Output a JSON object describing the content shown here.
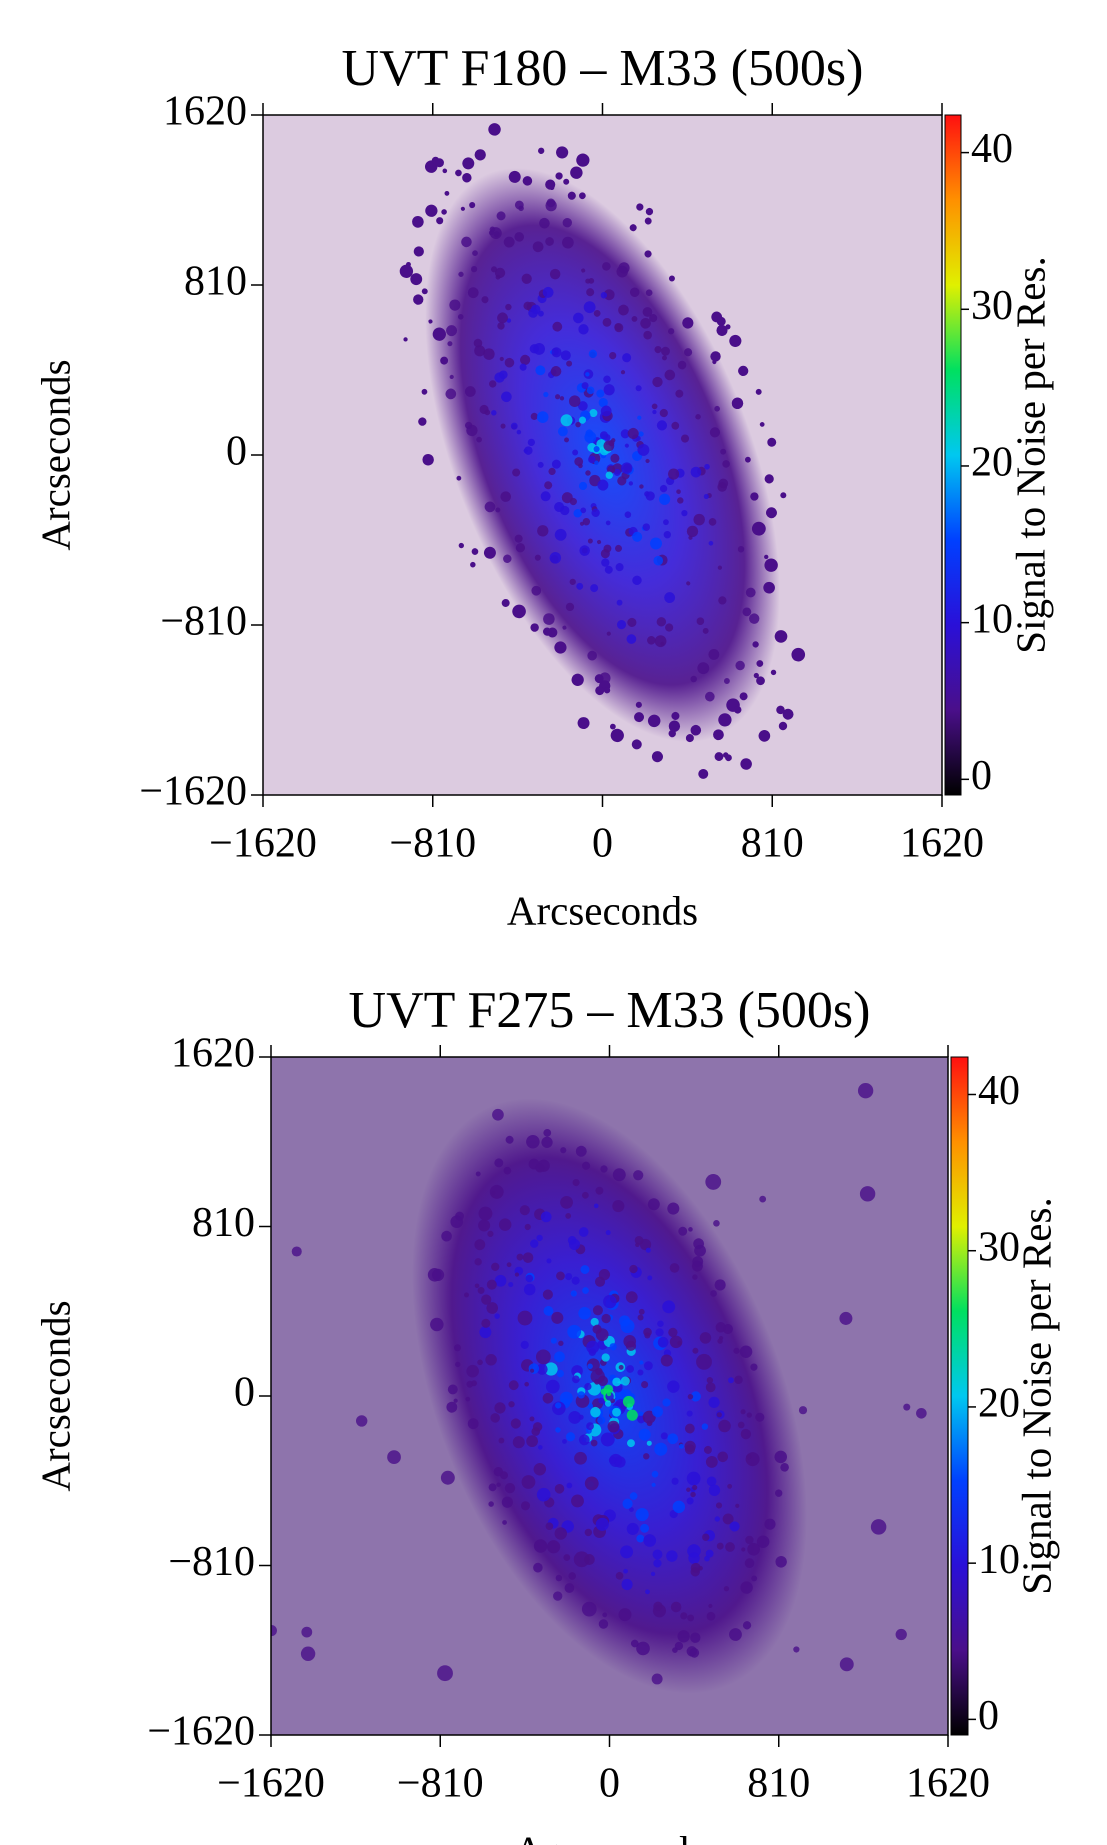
{
  "chart_data": [
    {
      "type": "image",
      "title": "UVT F180 – M33 (500s)",
      "xlabel": "Arcseconds",
      "ylabel": "Arcseconds",
      "xlim": [
        -1620,
        1620
      ],
      "ylim": [
        -1620,
        1620
      ],
      "xticks": [
        {
          "value": -1620,
          "label": "−1620"
        },
        {
          "value": -810,
          "label": "−810"
        },
        0,
        810,
        1620
      ],
      "yticks": [
        {
          "value": -1620,
          "label": "−1620"
        },
        {
          "value": -810,
          "label": "−810"
        },
        0,
        810,
        1620
      ],
      "background": "#dccbe0",
      "colorbar": {
        "label": "Signal to Noise per Res.",
        "lim": [
          -1,
          42.4
        ],
        "ticks": [
          0,
          10,
          20,
          30,
          40
        ],
        "colormap": [
          "#000000",
          "#4a0f8a",
          "#2a10d8",
          "#0040ff",
          "#00c8f0",
          "#00e060",
          "#e0f000",
          "#ff9000",
          "#ff1010"
        ]
      }
    },
    {
      "type": "image",
      "title": "UVT F275 – M33 (500s)",
      "xlabel": "Arcseconds",
      "ylabel": "Arcseconds",
      "xlim": [
        -1620,
        1620
      ],
      "ylim": [
        -1620,
        1620
      ],
      "xticks": [
        {
          "value": -1620,
          "label": "−1620"
        },
        {
          "value": -810,
          "label": "−810"
        },
        0,
        810,
        1620
      ],
      "yticks": [
        {
          "value": -1620,
          "label": "−1620"
        },
        {
          "value": -810,
          "label": "−810"
        },
        0,
        810,
        1620
      ],
      "background": "#8e74ac",
      "colorbar": {
        "label": "Signal to Noise per Res.",
        "lim": [
          -1,
          42.4
        ],
        "ticks": [
          0,
          10,
          20,
          30,
          40
        ],
        "colormap": [
          "#000000",
          "#4a0f8a",
          "#2a10d8",
          "#0040ff",
          "#00c8f0",
          "#00e060",
          "#e0f000",
          "#ff9000",
          "#ff1010"
        ]
      }
    }
  ]
}
